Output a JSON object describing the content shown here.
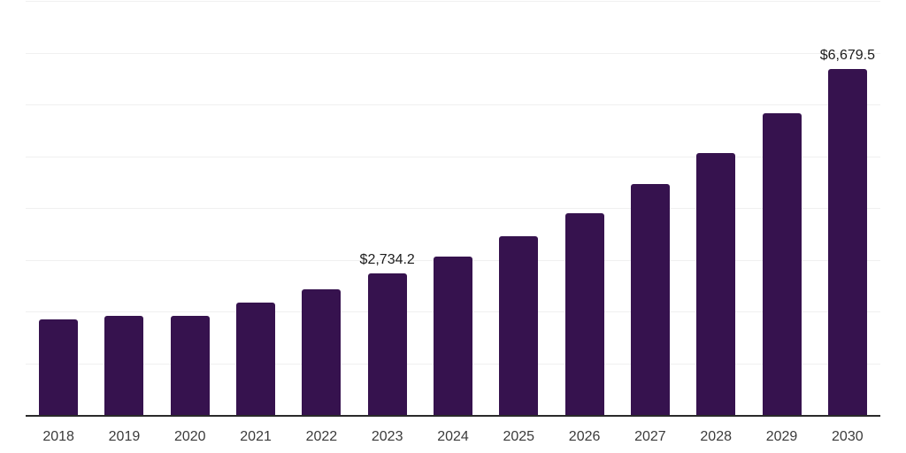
{
  "chart_data": {
    "type": "bar",
    "title": "",
    "categories": [
      "2018",
      "2019",
      "2020",
      "2021",
      "2022",
      "2023",
      "2024",
      "2025",
      "2026",
      "2027",
      "2028",
      "2029",
      "2030"
    ],
    "values": [
      1850,
      1910,
      1910,
      2170,
      2435,
      2734.2,
      3055,
      3450,
      3905,
      4455,
      5065,
      5825,
      6679.5
    ],
    "value_labels": [
      "",
      "",
      "",
      "",
      "",
      "$2,734.2",
      "",
      "",
      "",
      "",
      "",
      "",
      "$6,679.5"
    ],
    "xlabel": "",
    "ylabel": "",
    "ylim": [
      0,
      8000
    ],
    "gridline_step": 1000,
    "grid": true,
    "legend": "none",
    "colors": {
      "bar": "#36124E",
      "gridline": "#F0F0F0",
      "axis_line": "#2A2A2A",
      "value_label": "#1C1C1C",
      "tick_label": "#3B3B3B",
      "background": "#FFFFFF"
    }
  }
}
